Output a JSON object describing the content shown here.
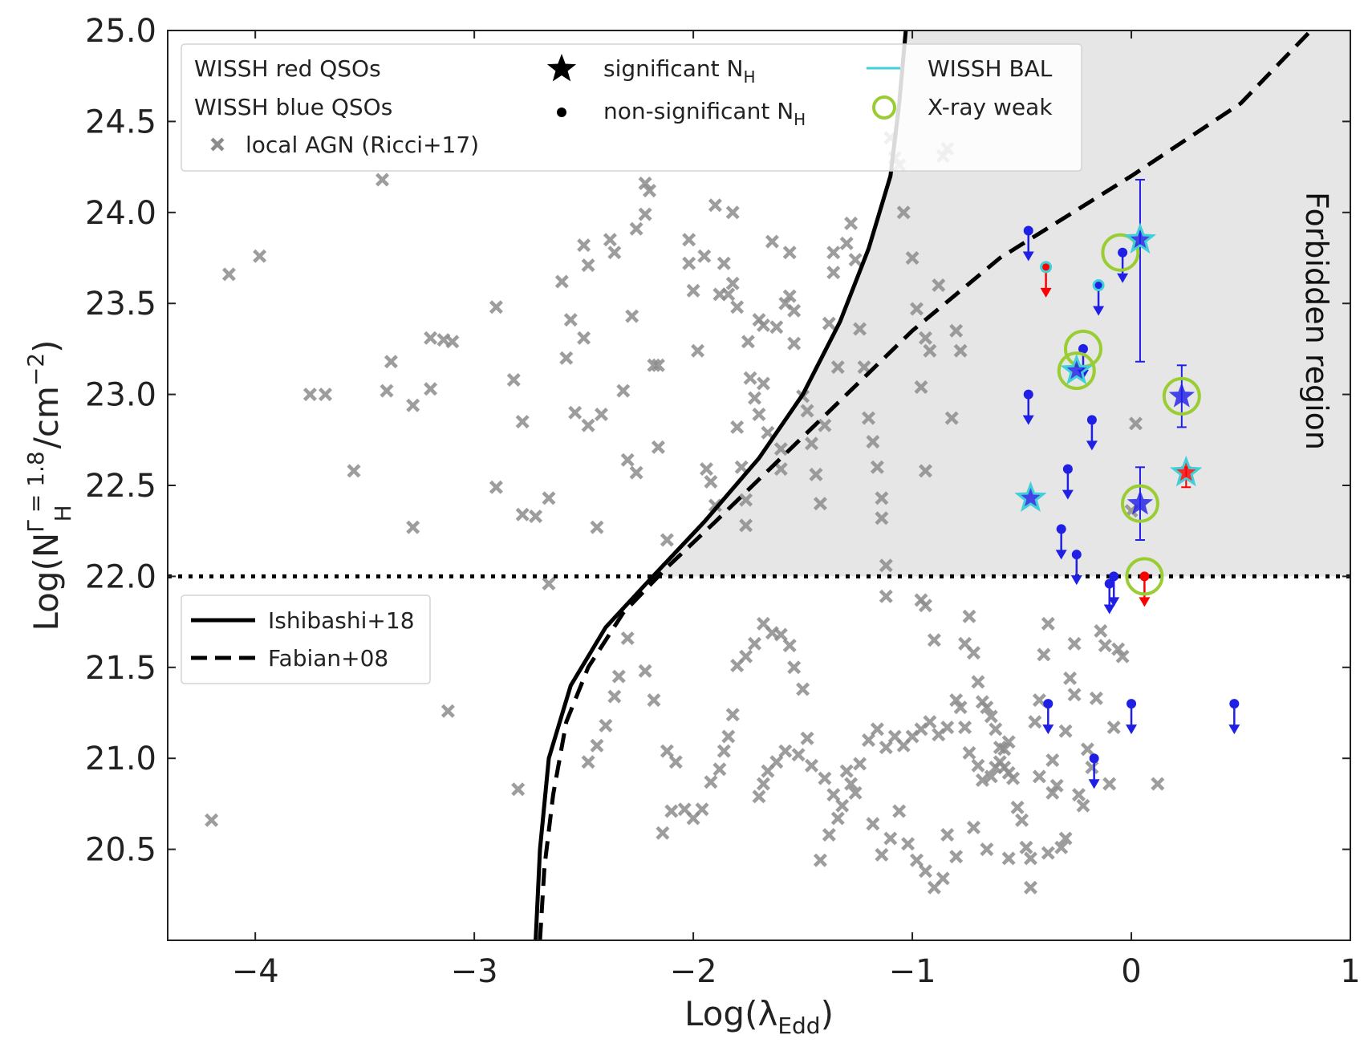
{
  "chart_data": {
    "type": "scatter",
    "xlabel": "Log(λ",
    "xlabel_sub": "Edd",
    "xlabel_end": ")",
    "ylabel_parts": {
      "pre": "Log(N",
      "sup": "Γ = 1.8",
      "sub": "H",
      "post": "/cm",
      "exp": "−2",
      "end": ")"
    },
    "xlim": [
      -4.4,
      1.0
    ],
    "ylim": [
      20.0,
      25.0
    ],
    "x_ticks": [
      -4,
      -3,
      -2,
      -1,
      0,
      1
    ],
    "x_tick_labels": [
      "−4",
      "−3",
      "−2",
      "−1",
      "0",
      "1"
    ],
    "y_ticks": [
      20.5,
      21.0,
      21.5,
      22.0,
      22.5,
      23.0,
      23.5,
      24.0,
      24.5,
      25.0
    ],
    "y_tick_labels": [
      "20.5",
      "21.0",
      "21.5",
      "22.0",
      "22.5",
      "23.0",
      "23.5",
      "24.0",
      "24.5",
      "25.0"
    ],
    "annotation": "Forbidden region",
    "colors": {
      "red": "#ff0000",
      "blue": "#1f1fe6",
      "grey": "#8c8c8c",
      "bal": "#40d0d8",
      "xweak": "#9acd32",
      "forbidden_fill": "#e6e6e6"
    },
    "legend_top": {
      "label_red": "WISSH red QSOs",
      "label_blue": "WISSH blue QSOs",
      "label_local": "local AGN (Ricci+17)",
      "label_sig": "significant N",
      "label_sig_sub": "H",
      "label_nonsig": "non-significant N",
      "label_nonsig_sub": "H",
      "label_bal": "WISSH BAL",
      "label_xweak": "X-ray weak"
    },
    "legend_lines": {
      "ishibashi": "Ishibashi+18",
      "fabian": "Fabian+08"
    },
    "dotted_line_y": 22.0,
    "fabian_line": [
      [
        -2.7,
        20.0
      ],
      [
        -2.68,
        20.4
      ],
      [
        -2.64,
        20.8
      ],
      [
        -2.58,
        21.2
      ],
      [
        -2.48,
        21.5
      ],
      [
        -2.32,
        21.8
      ],
      [
        -2.12,
        22.05
      ],
      [
        -1.9,
        22.3
      ],
      [
        -1.6,
        22.65
      ],
      [
        -1.3,
        23.0
      ],
      [
        -1.0,
        23.35
      ],
      [
        -0.6,
        23.75
      ],
      [
        0.0,
        24.2
      ],
      [
        0.5,
        24.6
      ],
      [
        0.82,
        25.0
      ]
    ],
    "ishibashi_line": [
      [
        -2.72,
        20.0
      ],
      [
        -2.7,
        20.5
      ],
      [
        -2.66,
        21.0
      ],
      [
        -2.56,
        21.4
      ],
      [
        -2.4,
        21.72
      ],
      [
        -2.2,
        21.98
      ],
      [
        -1.95,
        22.3
      ],
      [
        -1.7,
        22.65
      ],
      [
        -1.5,
        23.0
      ],
      [
        -1.33,
        23.4
      ],
      [
        -1.2,
        23.8
      ],
      [
        -1.1,
        24.2
      ],
      [
        -1.06,
        24.6
      ],
      [
        -1.03,
        25.0
      ]
    ],
    "local_agn": [
      [
        -4.2,
        20.66
      ],
      [
        -4.12,
        23.66
      ],
      [
        -3.98,
        23.76
      ],
      [
        -3.68,
        23.0
      ],
      [
        -3.75,
        23.0
      ],
      [
        -3.55,
        22.58
      ],
      [
        -3.42,
        24.18
      ],
      [
        -3.38,
        23.18
      ],
      [
        -3.4,
        23.02
      ],
      [
        -3.28,
        22.94
      ],
      [
        -3.2,
        23.31
      ],
      [
        -3.2,
        23.03
      ],
      [
        -3.14,
        23.3
      ],
      [
        -3.1,
        23.29
      ],
      [
        -3.12,
        21.26
      ],
      [
        -3.28,
        22.27
      ],
      [
        -2.9,
        23.48
      ],
      [
        -2.9,
        22.49
      ],
      [
        -2.82,
        23.08
      ],
      [
        -2.78,
        22.85
      ],
      [
        -2.78,
        22.34
      ],
      [
        -2.72,
        22.33
      ],
      [
        -2.66,
        22.43
      ],
      [
        -2.66,
        21.96
      ],
      [
        -2.8,
        20.83
      ],
      [
        -2.6,
        23.62
      ],
      [
        -2.56,
        23.41
      ],
      [
        -2.58,
        23.2
      ],
      [
        -2.54,
        22.9
      ],
      [
        -2.5,
        23.82
      ],
      [
        -2.48,
        23.71
      ],
      [
        -2.5,
        23.31
      ],
      [
        -2.48,
        22.83
      ],
      [
        -2.44,
        22.27
      ],
      [
        -2.42,
        22.89
      ],
      [
        -2.38,
        23.85
      ],
      [
        -2.36,
        23.78
      ],
      [
        -2.32,
        23.02
      ],
      [
        -2.3,
        22.64
      ],
      [
        -2.26,
        22.57
      ],
      [
        -2.26,
        23.91
      ],
      [
        -2.28,
        23.43
      ],
      [
        -2.22,
        24.16
      ],
      [
        -2.2,
        24.12
      ],
      [
        -2.22,
        23.99
      ],
      [
        -2.18,
        23.16
      ],
      [
        -2.16,
        23.16
      ],
      [
        -2.16,
        22.71
      ],
      [
        -2.12,
        22.2
      ],
      [
        -2.02,
        23.72
      ],
      [
        -2.02,
        23.85
      ],
      [
        -2.0,
        23.57
      ],
      [
        -1.98,
        23.24
      ],
      [
        -1.95,
        23.76
      ],
      [
        -1.94,
        22.59
      ],
      [
        -1.92,
        22.52
      ],
      [
        -1.9,
        22.39
      ],
      [
        -1.9,
        24.04
      ],
      [
        -1.88,
        23.55
      ],
      [
        -1.86,
        23.72
      ],
      [
        -1.84,
        23.55
      ],
      [
        -1.82,
        24.0
      ],
      [
        -1.82,
        23.61
      ],
      [
        -1.8,
        23.48
      ],
      [
        -1.8,
        22.82
      ],
      [
        -1.78,
        22.6
      ],
      [
        -1.76,
        22.42
      ],
      [
        -1.76,
        22.28
      ],
      [
        -1.75,
        23.29
      ],
      [
        -1.74,
        23.09
      ],
      [
        -1.72,
        22.98
      ],
      [
        -1.7,
        22.89
      ],
      [
        -1.7,
        23.41
      ],
      [
        -1.68,
        23.38
      ],
      [
        -1.68,
        23.06
      ],
      [
        -1.66,
        22.79
      ],
      [
        -1.64,
        23.84
      ],
      [
        -1.62,
        23.37
      ],
      [
        -1.6,
        22.7
      ],
      [
        -1.6,
        22.59
      ],
      [
        -1.58,
        23.5
      ],
      [
        -1.56,
        23.78
      ],
      [
        -1.56,
        23.54
      ],
      [
        -1.54,
        23.46
      ],
      [
        -1.54,
        23.28
      ],
      [
        -1.5,
        22.99
      ],
      [
        -1.48,
        22.91
      ],
      [
        -1.46,
        22.73
      ],
      [
        -1.44,
        22.56
      ],
      [
        -1.42,
        22.4
      ],
      [
        -1.4,
        22.83
      ],
      [
        -1.38,
        23.39
      ],
      [
        -1.36,
        23.78
      ],
      [
        -1.36,
        23.67
      ],
      [
        -1.34,
        23.15
      ],
      [
        -1.3,
        23.83
      ],
      [
        -1.28,
        23.94
      ],
      [
        -1.26,
        23.74
      ],
      [
        -1.24,
        23.36
      ],
      [
        -1.22,
        23.15
      ],
      [
        -1.2,
        22.87
      ],
      [
        -1.18,
        22.74
      ],
      [
        -1.16,
        22.6
      ],
      [
        -1.14,
        22.43
      ],
      [
        -1.14,
        22.32
      ],
      [
        -1.12,
        21.89
      ],
      [
        -1.12,
        22.06
      ],
      [
        -1.1,
        24.41
      ],
      [
        -1.08,
        24.3
      ],
      [
        -1.06,
        24.26
      ],
      [
        -1.04,
        24.0
      ],
      [
        -1.0,
        23.75
      ],
      [
        -0.98,
        23.47
      ],
      [
        -0.96,
        23.04
      ],
      [
        -0.94,
        23.31
      ],
      [
        -0.92,
        23.24
      ],
      [
        -0.94,
        22.58
      ],
      [
        -0.96,
        21.87
      ],
      [
        -0.94,
        21.84
      ],
      [
        -0.9,
        21.65
      ],
      [
        -0.88,
        23.6
      ],
      [
        -0.86,
        24.31
      ],
      [
        -0.84,
        24.35
      ],
      [
        -0.82,
        22.87
      ],
      [
        -0.8,
        23.35
      ],
      [
        -0.78,
        23.24
      ],
      [
        -0.76,
        21.63
      ],
      [
        -0.74,
        21.78
      ],
      [
        -0.72,
        21.58
      ],
      [
        -0.7,
        21.42
      ],
      [
        -0.68,
        21.31
      ],
      [
        -0.66,
        21.28
      ],
      [
        -0.64,
        21.23
      ],
      [
        -0.62,
        21.16
      ],
      [
        -0.6,
        21.06
      ],
      [
        -0.58,
        20.95
      ],
      [
        -0.56,
        20.92
      ],
      [
        -0.54,
        20.89
      ],
      [
        -0.52,
        20.73
      ],
      [
        -0.5,
        20.66
      ],
      [
        -0.48,
        20.51
      ],
      [
        -0.46,
        20.45
      ],
      [
        -0.44,
        21.2
      ],
      [
        -0.42,
        21.32
      ],
      [
        -0.4,
        21.57
      ],
      [
        -0.38,
        21.74
      ],
      [
        -0.36,
        20.99
      ],
      [
        -0.34,
        20.85
      ],
      [
        -0.3,
        20.56
      ],
      [
        -0.3,
        21.15
      ],
      [
        -0.28,
        21.44
      ],
      [
        -0.26,
        21.35
      ],
      [
        -0.26,
        21.63
      ],
      [
        -0.24,
        20.8
      ],
      [
        -0.22,
        20.74
      ],
      [
        -0.2,
        21.05
      ],
      [
        -0.18,
        20.95
      ],
      [
        -0.16,
        21.33
      ],
      [
        -0.14,
        21.7
      ],
      [
        -0.12,
        21.62
      ],
      [
        -0.1,
        20.86
      ],
      [
        -0.08,
        21.17
      ],
      [
        -0.06,
        21.6
      ],
      [
        -0.04,
        21.56
      ],
      [
        0.0,
        22.36
      ],
      [
        0.02,
        22.84
      ],
      [
        0.12,
        20.86
      ],
      [
        -0.36,
        20.81
      ],
      [
        -0.42,
        20.9
      ],
      [
        -0.38,
        20.48
      ],
      [
        -0.32,
        20.51
      ],
      [
        -0.46,
        20.29
      ],
      [
        -0.56,
        20.45
      ],
      [
        -0.66,
        20.5
      ],
      [
        -0.72,
        20.62
      ],
      [
        -0.8,
        20.46
      ],
      [
        -0.84,
        20.58
      ],
      [
        -0.86,
        20.34
      ],
      [
        -0.9,
        20.29
      ],
      [
        -0.94,
        20.38
      ],
      [
        -0.98,
        20.44
      ],
      [
        -1.02,
        20.53
      ],
      [
        -1.06,
        20.71
      ],
      [
        -1.1,
        20.56
      ],
      [
        -1.14,
        20.47
      ],
      [
        -1.18,
        20.64
      ],
      [
        -1.26,
        20.81
      ],
      [
        -1.28,
        20.86
      ],
      [
        -1.32,
        20.74
      ],
      [
        -1.34,
        20.67
      ],
      [
        -1.38,
        20.58
      ],
      [
        -1.42,
        20.44
      ],
      [
        -1.48,
        21.11
      ],
      [
        -1.5,
        21.38
      ],
      [
        -1.54,
        21.5
      ],
      [
        -1.56,
        21.62
      ],
      [
        -1.6,
        21.68
      ],
      [
        -1.64,
        21.69
      ],
      [
        -1.68,
        21.74
      ],
      [
        -1.72,
        21.63
      ],
      [
        -1.76,
        21.56
      ],
      [
        -1.8,
        21.51
      ],
      [
        -1.82,
        21.24
      ],
      [
        -1.84,
        21.12
      ],
      [
        -1.86,
        21.04
      ],
      [
        -1.88,
        20.94
      ],
      [
        -1.92,
        20.87
      ],
      [
        -1.96,
        20.72
      ],
      [
        -2.0,
        20.67
      ],
      [
        -2.04,
        20.72
      ],
      [
        -2.08,
        20.98
      ],
      [
        -2.12,
        21.04
      ],
      [
        -2.18,
        21.32
      ],
      [
        -2.22,
        21.48
      ],
      [
        -2.3,
        21.66
      ],
      [
        -2.34,
        21.45
      ],
      [
        -2.36,
        21.34
      ],
      [
        -2.4,
        21.18
      ],
      [
        -2.44,
        21.07
      ],
      [
        -2.48,
        20.98
      ],
      [
        -2.14,
        20.59
      ],
      [
        -2.1,
        20.71
      ],
      [
        -1.7,
        20.79
      ],
      [
        -1.68,
        20.86
      ],
      [
        -1.66,
        20.93
      ],
      [
        -1.62,
        20.98
      ],
      [
        -1.58,
        21.04
      ],
      [
        -1.52,
        21.02
      ],
      [
        -1.46,
        20.96
      ],
      [
        -1.4,
        20.89
      ],
      [
        -1.36,
        20.8
      ],
      [
        -1.3,
        20.93
      ],
      [
        -1.24,
        20.97
      ],
      [
        -1.2,
        21.1
      ],
      [
        -1.16,
        21.16
      ],
      [
        -1.12,
        21.06
      ],
      [
        -1.08,
        21.12
      ],
      [
        -1.04,
        21.07
      ],
      [
        -1.0,
        21.12
      ],
      [
        -0.96,
        21.16
      ],
      [
        -0.92,
        21.2
      ],
      [
        -0.88,
        21.13
      ],
      [
        -0.84,
        21.17
      ],
      [
        -0.8,
        21.32
      ],
      [
        -0.78,
        21.28
      ],
      [
        -0.76,
        21.17
      ],
      [
        -0.74,
        21.03
      ],
      [
        -0.7,
        20.96
      ],
      [
        -0.68,
        20.88
      ],
      [
        -0.64,
        20.9
      ],
      [
        -0.62,
        20.95
      ],
      [
        -0.6,
        20.98
      ],
      [
        -0.58,
        21.05
      ],
      [
        -0.56,
        21.09
      ]
    ],
    "red_points": [
      {
        "x": -0.39,
        "y": 23.7,
        "kind": "circle",
        "upper_limit": true,
        "bal": true,
        "xweak": false
      },
      {
        "x": 0.06,
        "y": 22.0,
        "kind": "circle",
        "upper_limit": true,
        "bal": false,
        "xweak": true
      },
      {
        "x": 0.25,
        "y": 22.57,
        "kind": "star",
        "upper_limit": false,
        "bal": true,
        "xweak": false,
        "err_lo": 0.08,
        "err_hi": 0.03
      }
    ],
    "blue_points": [
      {
        "x": -0.47,
        "y": 23.9,
        "kind": "circle",
        "upper_limit": true,
        "bal": false,
        "xweak": false
      },
      {
        "x": -0.15,
        "y": 23.6,
        "kind": "circle",
        "upper_limit": true,
        "bal": true,
        "xweak": false
      },
      {
        "x": -0.04,
        "y": 23.78,
        "kind": "circle",
        "upper_limit": true,
        "bal": false,
        "xweak": false
      },
      {
        "x": -0.22,
        "y": 23.25,
        "kind": "circle",
        "upper_limit": true,
        "bal": false,
        "xweak": true
      },
      {
        "x": -0.47,
        "y": 23.0,
        "kind": "circle",
        "upper_limit": true,
        "bal": false,
        "xweak": false
      },
      {
        "x": -0.18,
        "y": 22.86,
        "kind": "circle",
        "upper_limit": true,
        "bal": false,
        "xweak": false
      },
      {
        "x": -0.29,
        "y": 22.59,
        "kind": "circle",
        "upper_limit": true,
        "bal": false,
        "xweak": false
      },
      {
        "x": -0.32,
        "y": 22.26,
        "kind": "circle",
        "upper_limit": true,
        "bal": false,
        "xweak": false
      },
      {
        "x": -0.25,
        "y": 22.12,
        "kind": "circle",
        "upper_limit": true,
        "bal": false,
        "xweak": false
      },
      {
        "x": -0.1,
        "y": 21.96,
        "kind": "circle",
        "upper_limit": true,
        "bal": false,
        "xweak": false
      },
      {
        "x": -0.08,
        "y": 22.0,
        "kind": "circle",
        "upper_limit": true,
        "bal": false,
        "xweak": false
      },
      {
        "x": -0.38,
        "y": 21.3,
        "kind": "circle",
        "upper_limit": true,
        "bal": false,
        "xweak": false
      },
      {
        "x": 0.0,
        "y": 21.3,
        "kind": "circle",
        "upper_limit": true,
        "bal": false,
        "xweak": false
      },
      {
        "x": 0.47,
        "y": 21.3,
        "kind": "circle",
        "upper_limit": true,
        "bal": false,
        "xweak": false
      },
      {
        "x": -0.17,
        "y": 21.0,
        "kind": "circle",
        "upper_limit": true,
        "bal": false,
        "xweak": false
      },
      {
        "x": 0.04,
        "y": 23.85,
        "kind": "star",
        "upper_limit": false,
        "bal": true,
        "xweak": true,
        "err_lo": 0.67,
        "err_hi": 0.33,
        "xweak_dx": -0.09,
        "xweak_dy": -0.07
      },
      {
        "x": -0.25,
        "y": 23.13,
        "kind": "star",
        "upper_limit": false,
        "bal": true,
        "xweak": true
      },
      {
        "x": 0.23,
        "y": 22.99,
        "kind": "star",
        "upper_limit": false,
        "bal": false,
        "xweak": true,
        "err_lo": 0.17,
        "err_hi": 0.17
      },
      {
        "x": 0.04,
        "y": 22.4,
        "kind": "star",
        "upper_limit": false,
        "bal": false,
        "xweak": true,
        "err_lo": 0.2,
        "err_hi": 0.2
      },
      {
        "x": -0.46,
        "y": 22.43,
        "kind": "star",
        "upper_limit": false,
        "bal": true,
        "xweak": false
      }
    ]
  }
}
